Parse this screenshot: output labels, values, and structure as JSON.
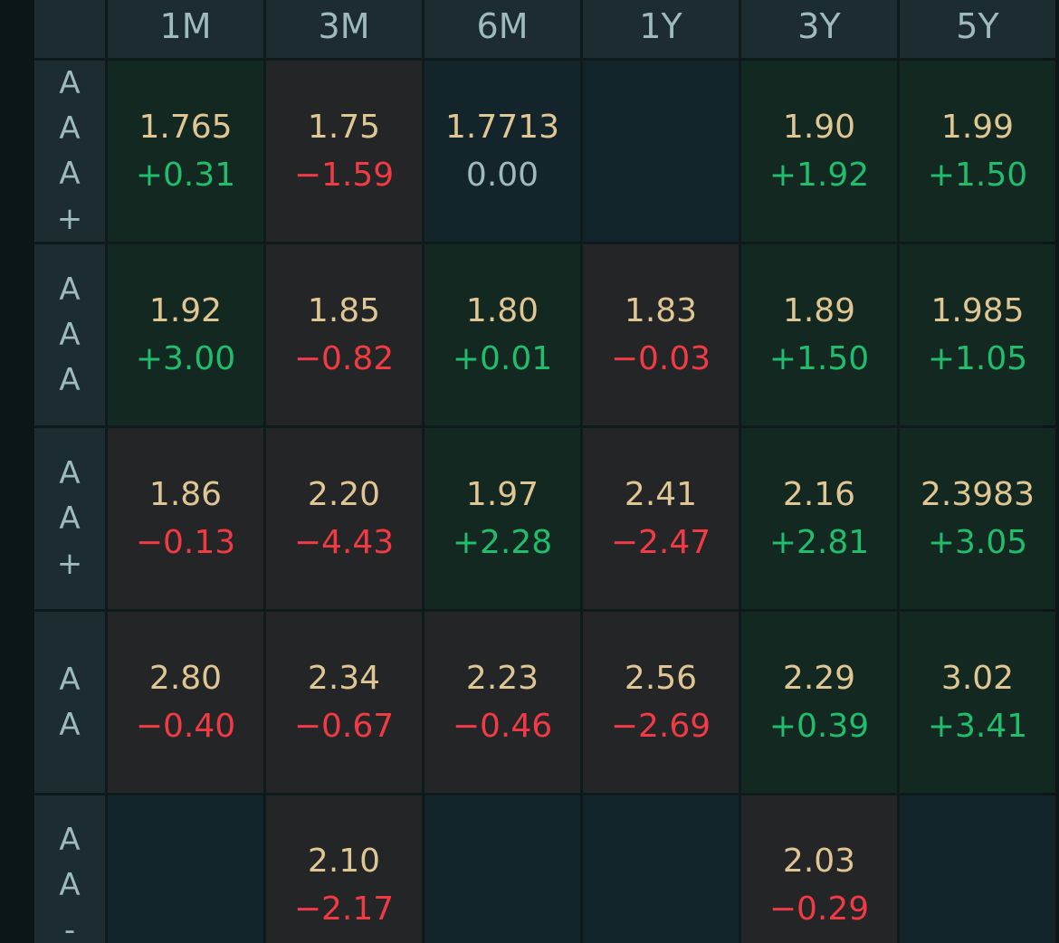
{
  "columns": [
    "1M",
    "3M",
    "6M",
    "1Y",
    "3Y",
    "5Y"
  ],
  "rows": [
    {
      "label": [
        "A",
        "A",
        "A",
        "+"
      ],
      "cells": [
        {
          "value": "1.765",
          "change": "+0.31",
          "dir": "up"
        },
        {
          "value": "1.75",
          "change": "−1.59",
          "dir": "down"
        },
        {
          "value": "1.7713",
          "change": "0.00",
          "dir": "flat"
        },
        {
          "value": "",
          "change": "",
          "dir": "empty"
        },
        {
          "value": "1.90",
          "change": "+1.92",
          "dir": "up"
        },
        {
          "value": "1.99",
          "change": "+1.50",
          "dir": "up"
        }
      ]
    },
    {
      "label": [
        "A",
        "A",
        "A"
      ],
      "cells": [
        {
          "value": "1.92",
          "change": "+3.00",
          "dir": "up"
        },
        {
          "value": "1.85",
          "change": "−0.82",
          "dir": "down"
        },
        {
          "value": "1.80",
          "change": "+0.01",
          "dir": "up"
        },
        {
          "value": "1.83",
          "change": "−0.03",
          "dir": "down"
        },
        {
          "value": "1.89",
          "change": "+1.50",
          "dir": "up"
        },
        {
          "value": "1.985",
          "change": "+1.05",
          "dir": "up"
        }
      ]
    },
    {
      "label": [
        "A",
        "A",
        "+"
      ],
      "cells": [
        {
          "value": "1.86",
          "change": "−0.13",
          "dir": "down"
        },
        {
          "value": "2.20",
          "change": "−4.43",
          "dir": "down"
        },
        {
          "value": "1.97",
          "change": "+2.28",
          "dir": "up"
        },
        {
          "value": "2.41",
          "change": "−2.47",
          "dir": "down"
        },
        {
          "value": "2.16",
          "change": "+2.81",
          "dir": "up"
        },
        {
          "value": "2.3983",
          "change": "+3.05",
          "dir": "up"
        }
      ]
    },
    {
      "label": [
        "A",
        "A"
      ],
      "cells": [
        {
          "value": "2.80",
          "change": "−0.40",
          "dir": "down"
        },
        {
          "value": "2.34",
          "change": "−0.67",
          "dir": "down"
        },
        {
          "value": "2.23",
          "change": "−0.46",
          "dir": "down"
        },
        {
          "value": "2.56",
          "change": "−2.69",
          "dir": "down"
        },
        {
          "value": "2.29",
          "change": "+0.39",
          "dir": "up"
        },
        {
          "value": "3.02",
          "change": "+3.41",
          "dir": "up"
        }
      ]
    },
    {
      "label": [
        "A",
        "A",
        "-"
      ],
      "cells": [
        {
          "value": "",
          "change": "",
          "dir": "empty"
        },
        {
          "value": "2.10",
          "change": "−2.17",
          "dir": "down"
        },
        {
          "value": "",
          "change": "",
          "dir": "empty"
        },
        {
          "value": "",
          "change": "",
          "dir": "empty"
        },
        {
          "value": "2.03",
          "change": "−0.29",
          "dir": "down"
        },
        {
          "value": "",
          "change": "",
          "dir": "empty"
        }
      ]
    }
  ]
}
